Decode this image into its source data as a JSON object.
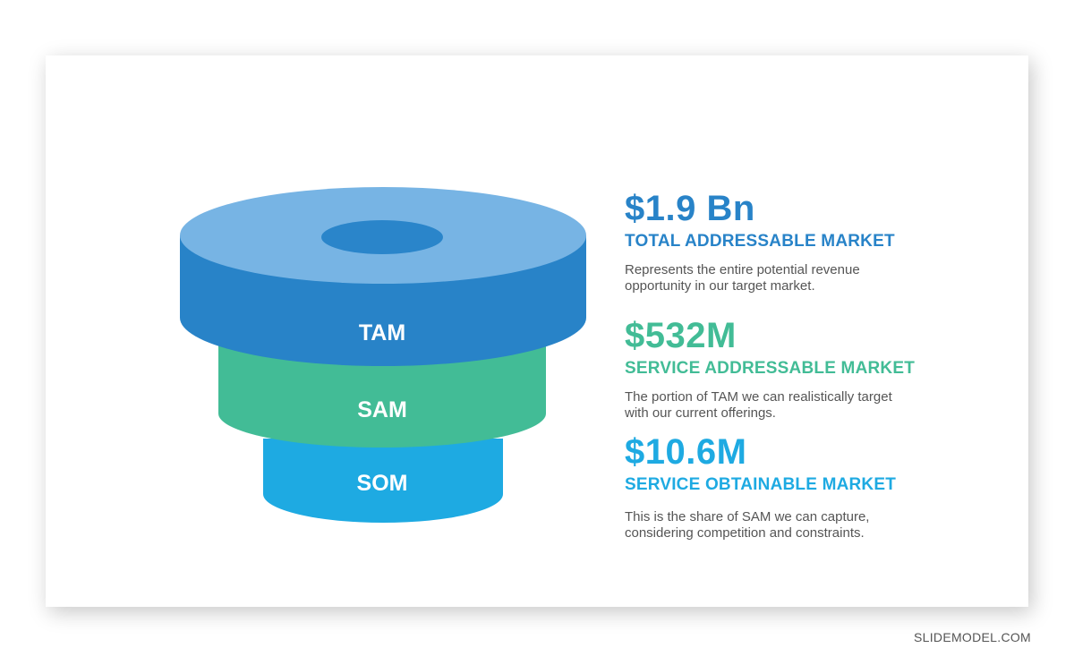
{
  "colors": {
    "tam_top": "#77B4E4",
    "tam_side": "#2883C8",
    "tam_hole": "#2A85CA",
    "sam": "#42BC96",
    "som": "#1EAAE2",
    "text_desc": "#555555"
  },
  "layers": [
    {
      "key": "tam",
      "label": "TAM"
    },
    {
      "key": "sam",
      "label": "SAM"
    },
    {
      "key": "som",
      "label": "SOM"
    }
  ],
  "markets": [
    {
      "value": "$1.9 Bn",
      "title": "TOTAL ADDRESSABLE MARKET",
      "description_line1": "Represents the entire potential revenue",
      "description_line2": "opportunity in our target market.",
      "color": "#2883C8"
    },
    {
      "value": "$532M",
      "title": "SERVICE ADDRESSABLE MARKET",
      "description_line1": "The portion of TAM we can realistically target",
      "description_line2": "with our current offerings.",
      "color": "#42BC96"
    },
    {
      "value": "$10.6M",
      "title": "SERVICE OBTAINABLE MARKET",
      "description_line1": "This is the share of SAM we can capture,",
      "description_line2": "considering competition and constraints.",
      "color": "#1EAAE2"
    }
  ],
  "brand": "SLIDEMODEL.COM"
}
